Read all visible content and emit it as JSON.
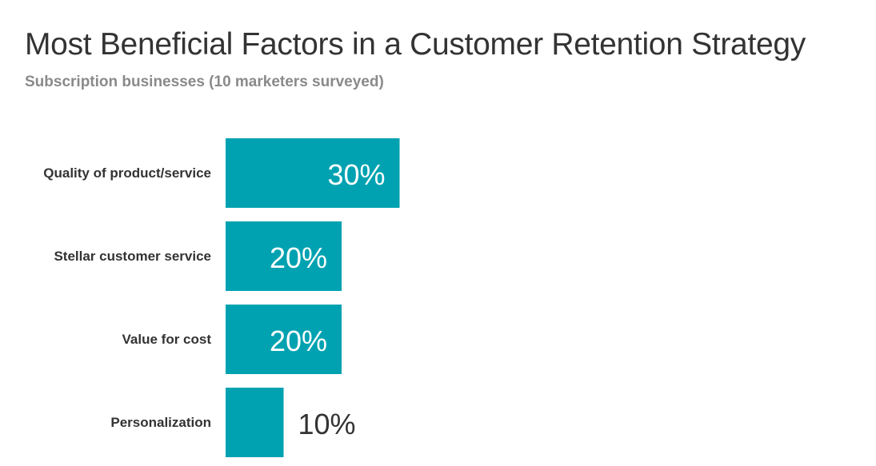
{
  "title": "Most Beneficial Factors in a Customer Retention Strategy",
  "subtitle": "Subscription businesses (10 marketers surveyed)",
  "colors": {
    "bar": "#00a2b1",
    "label_inside": "#ffffff",
    "label_outside": "#333333"
  },
  "chart_data": {
    "type": "bar",
    "orientation": "horizontal",
    "title": "Most Beneficial Factors in a Customer Retention Strategy",
    "subtitle": "Subscription businesses (10 marketers surveyed)",
    "categories": [
      "Quality of product/service",
      "Stellar customer service",
      "Value for cost",
      "Personalization"
    ],
    "values": [
      30,
      20,
      20,
      10
    ],
    "value_labels": [
      "30%",
      "20%",
      "20%",
      "10%"
    ],
    "unit": "%",
    "xlim": [
      0,
      100
    ],
    "grid": false,
    "legend": "none"
  }
}
